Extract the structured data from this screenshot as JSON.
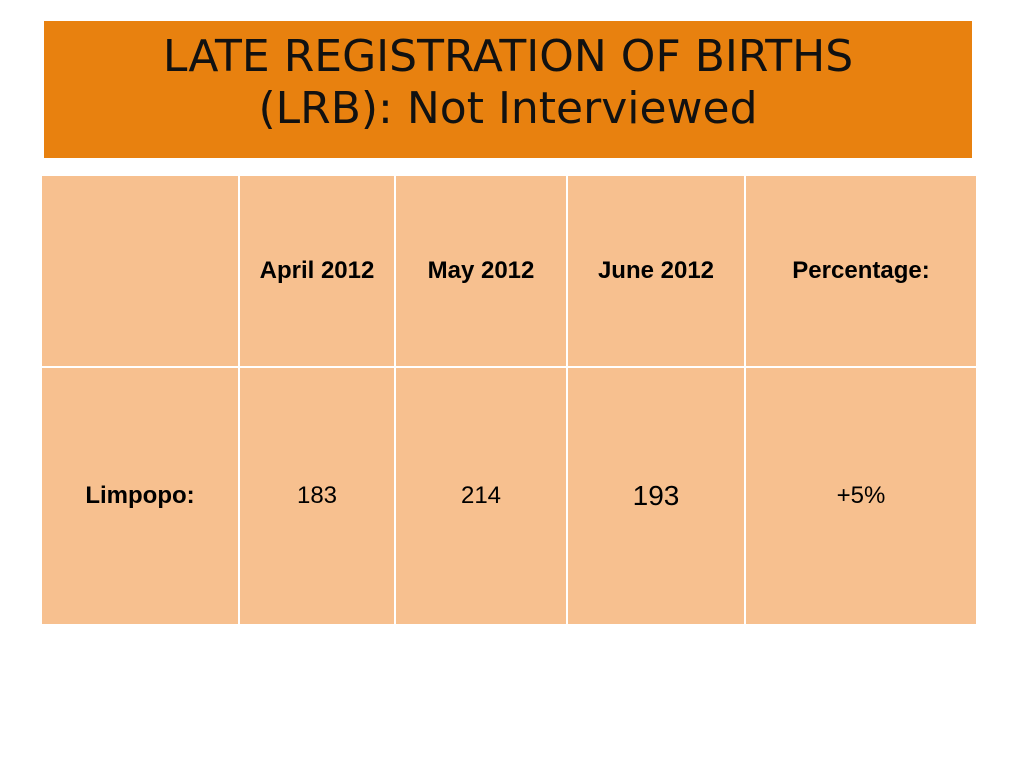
{
  "header": {
    "title_line1": "LATE REGISTRATION OF BIRTHS",
    "title_line2": "(LRB): Not Interviewed"
  },
  "table": {
    "columns": [
      "",
      "April 2012",
      "May 2012",
      "June 2012",
      "Percentage:"
    ],
    "rows": [
      [
        "Limpopo:",
        "183",
        "214",
        "193",
        "+5%"
      ]
    ]
  }
}
